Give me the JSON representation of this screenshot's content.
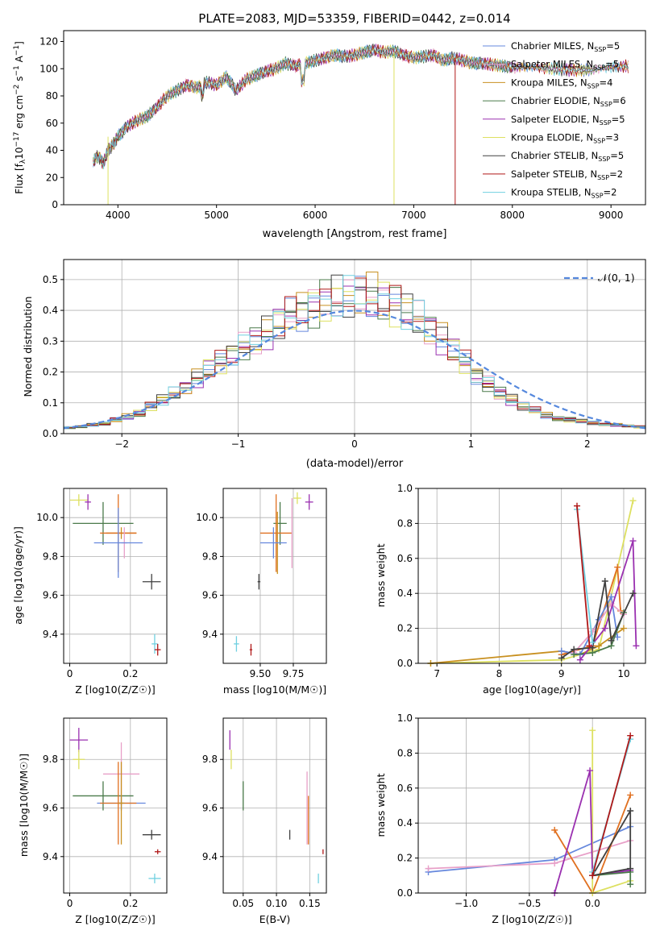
{
  "figure": {
    "title": "PLATE=2083, MJD=53359, FIBERID=0442, z=0.014"
  },
  "colors": {
    "series": [
      "#6688dd",
      "#e8a0c8",
      "#c89020",
      "#4a7a4a",
      "#9a30b0",
      "#dde060",
      "#404040",
      "#b01818",
      "#70d0e0"
    ],
    "extra_orange": "#e07020",
    "grid": "#b0b0b0",
    "gauss": "#5588dd"
  },
  "icons": [],
  "chart_data": [
    {
      "type": "line",
      "title": "PLATE=2083, MJD=53359, FIBERID=0442, z=0.014",
      "xlabel": "wavelength [Angstrom, rest frame]",
      "ylabel": "Flux [f_λ 10^-17 erg cm^-2 s^-1 A^-1]",
      "xlim": [
        3450,
        9350
      ],
      "ylim": [
        0,
        128
      ],
      "xticks": [
        4000,
        5000,
        6000,
        7000,
        8000,
        9000
      ],
      "yticks": [
        0,
        20,
        40,
        60,
        80,
        100,
        120
      ],
      "legend_position": "top-right",
      "series": [
        {
          "name": "Chabrier MILES, N_SSP=5"
        },
        {
          "name": "Salpeter MILES, N_SSP=5"
        },
        {
          "name": "Kroupa MILES, N_SSP=4"
        },
        {
          "name": "Chabrier ELODIE, N_SSP=6"
        },
        {
          "name": "Salpeter ELODIE, N_SSP=5"
        },
        {
          "name": "Kroupa ELODIE, N_SSP=3"
        },
        {
          "name": "Chabrier STELIB, N_SSP=5"
        },
        {
          "name": "Salpeter STELIB, N_SSP=2"
        },
        {
          "name": "Kroupa STELIB, N_SSP=2"
        }
      ],
      "spectrum": {
        "x": [
          3750,
          3800,
          3850,
          3900,
          3950,
          4000,
          4100,
          4200,
          4300,
          4400,
          4500,
          4600,
          4700,
          4800,
          4900,
          5000,
          5100,
          5200,
          5300,
          5400,
          5500,
          5600,
          5700,
          5800,
          5900,
          6000,
          6100,
          6200,
          6300,
          6400,
          6500,
          6600,
          6700,
          6800,
          6900,
          7000,
          7100,
          7200,
          7300,
          7400,
          7500,
          7600,
          7700,
          7800,
          7900,
          8000,
          8200,
          8400,
          8600,
          8800,
          9000,
          9200
        ],
        "y": [
          32,
          36,
          30,
          40,
          44,
          50,
          58,
          62,
          65,
          72,
          80,
          84,
          88,
          86,
          90,
          88,
          94,
          84,
          92,
          95,
          98,
          100,
          104,
          102,
          104,
          106,
          108,
          110,
          109,
          110,
          112,
          114,
          112,
          113,
          110,
          108,
          109,
          110,
          106,
          108,
          106,
          104,
          104,
          103,
          102,
          101,
          101,
          100,
          99,
          99,
          101,
          102
        ]
      }
    },
    {
      "type": "bar",
      "subtype": "step-histogram",
      "xlabel": "(data-model)/error",
      "ylabel": "Normed distribution",
      "xlim": [
        -2.5,
        2.5
      ],
      "ylim": [
        0,
        0.565
      ],
      "xticks": [
        -2,
        -1,
        0,
        1,
        2
      ],
      "yticks": [
        0.0,
        0.1,
        0.2,
        0.3,
        0.4,
        0.5
      ],
      "legend_position": "top-right",
      "legend": [
        "𝒩(0, 1)"
      ],
      "bin_edges": [
        -2.5,
        -2.4,
        -2.3,
        -2.2,
        -2.1,
        -2.0,
        -1.9,
        -1.8,
        -1.7,
        -1.6,
        -1.5,
        -1.4,
        -1.3,
        -1.2,
        -1.1,
        -1.0,
        -0.9,
        -0.8,
        -0.7,
        -0.6,
        -0.5,
        -0.4,
        -0.3,
        -0.2,
        -0.1,
        0.0,
        0.1,
        0.2,
        0.3,
        0.4,
        0.5,
        0.6,
        0.7,
        0.8,
        0.9,
        1.0,
        1.1,
        1.2,
        1.3,
        1.4,
        1.5,
        1.6,
        1.7,
        1.8,
        1.9,
        2.0,
        2.1,
        2.2,
        2.3,
        2.4,
        2.5
      ],
      "base_values": [
        0.02,
        0.022,
        0.028,
        0.033,
        0.045,
        0.055,
        0.066,
        0.09,
        0.11,
        0.13,
        0.15,
        0.18,
        0.21,
        0.23,
        0.26,
        0.28,
        0.3,
        0.33,
        0.36,
        0.38,
        0.4,
        0.41,
        0.43,
        0.44,
        0.445,
        0.45,
        0.445,
        0.43,
        0.42,
        0.4,
        0.37,
        0.34,
        0.31,
        0.27,
        0.23,
        0.19,
        0.16,
        0.13,
        0.11,
        0.09,
        0.075,
        0.06,
        0.05,
        0.045,
        0.04,
        0.035,
        0.03,
        0.028,
        0.025,
        0.022
      ]
    },
    {
      "type": "scatter",
      "subtype": "errorbar",
      "xlabel": "Z [log10(Z/Z☉)]",
      "ylabel": "age  [log10(age/yr)]",
      "xlim": [
        -0.02,
        0.32
      ],
      "ylim": [
        9.25,
        10.15
      ],
      "xticks": [
        0.0,
        0.2
      ],
      "yticks": [
        9.4,
        9.6,
        9.8,
        10.0
      ],
      "points": [
        {
          "x": 0.03,
          "y": 10.09,
          "xerr": 0.03,
          "yerr": 0.03,
          "color": 5
        },
        {
          "x": 0.06,
          "y": 10.08,
          "xerr": 0.01,
          "yerr": 0.04,
          "color": 4
        },
        {
          "x": 0.11,
          "y": 9.97,
          "xerr": 0.1,
          "yerr": 0.11,
          "color": 3
        },
        {
          "x": 0.17,
          "y": 9.92,
          "xerr": 0.05,
          "yerr": 0.03,
          "color": 2
        },
        {
          "x": 0.16,
          "y": 9.92,
          "xerr": 0.06,
          "yerr": 0.2,
          "color": 9
        },
        {
          "x": 0.18,
          "y": 9.87,
          "xerr": 0.01,
          "yerr": 0.08,
          "color": 1
        },
        {
          "x": 0.16,
          "y": 9.87,
          "xerr": 0.08,
          "yerr": 0.18,
          "color": 0
        },
        {
          "x": 0.27,
          "y": 9.67,
          "xerr": 0.03,
          "yerr": 0.04,
          "color": 6
        },
        {
          "x": 0.28,
          "y": 9.35,
          "xerr": 0.01,
          "yerr": 0.05,
          "color": 8
        },
        {
          "x": 0.29,
          "y": 9.32,
          "xerr": 0.01,
          "yerr": 0.03,
          "color": 7
        }
      ]
    },
    {
      "type": "scatter",
      "subtype": "errorbar",
      "xlabel": "mass [log10(M/M☉)]",
      "ylabel": "",
      "xlim": [
        9.22,
        10.0
      ],
      "ylim": [
        9.25,
        10.15
      ],
      "xticks": [
        9.5,
        9.75
      ],
      "tick_labels": [
        "9.50",
        "9.75"
      ],
      "yticks": [
        9.4,
        9.6,
        9.8,
        10.0
      ],
      "points": [
        {
          "x": 9.78,
          "y": 10.1,
          "xerr": 0.03,
          "yerr": 0.03,
          "color": 5
        },
        {
          "x": 9.87,
          "y": 10.08,
          "xerr": 0.03,
          "yerr": 0.04,
          "color": 4
        },
        {
          "x": 9.65,
          "y": 9.97,
          "xerr": 0.05,
          "yerr": 0.11,
          "color": 3
        },
        {
          "x": 9.62,
          "y": 9.92,
          "xerr": 0.12,
          "yerr": 0.2,
          "color": 9
        },
        {
          "x": 9.74,
          "y": 9.92,
          "xerr": 0.001,
          "yerr": 0.18,
          "color": 1
        },
        {
          "x": 9.63,
          "y": 9.87,
          "xerr": 0.001,
          "yerr": 0.16,
          "color": 2
        },
        {
          "x": 9.6,
          "y": 9.87,
          "xerr": 0.1,
          "yerr": 0.08,
          "color": 0
        },
        {
          "x": 9.49,
          "y": 9.67,
          "xerr": 0.01,
          "yerr": 0.04,
          "color": 6
        },
        {
          "x": 9.32,
          "y": 9.35,
          "xerr": 0.02,
          "yerr": 0.04,
          "color": 8
        },
        {
          "x": 9.43,
          "y": 9.32,
          "xerr": 0.01,
          "yerr": 0.03,
          "color": 7
        }
      ]
    },
    {
      "type": "line",
      "xlabel": "age  [log10(age/yr)]",
      "ylabel": "mass weight",
      "xlim": [
        6.7,
        10.35
      ],
      "ylim": [
        0.0,
        1.0
      ],
      "xticks": [
        7,
        8,
        9,
        10
      ],
      "yticks": [
        0.0,
        0.2,
        0.4,
        0.6,
        0.8,
        1.0
      ],
      "series": [
        {
          "color": 5,
          "x": [
            6.9,
            9.0,
            9.6,
            10.15
          ],
          "y": [
            0.0,
            0.02,
            0.08,
            0.93
          ]
        },
        {
          "color": 2,
          "x": [
            6.9,
            9.0,
            9.3,
            9.6,
            10.0
          ],
          "y": [
            0.0,
            0.07,
            0.05,
            0.1,
            0.2
          ]
        },
        {
          "color": 9,
          "x": [
            9.0,
            9.5,
            9.9,
            9.95
          ],
          "y": [
            0.05,
            0.1,
            0.55,
            0.3
          ]
        },
        {
          "color": 0,
          "x": [
            9.0,
            9.3,
            9.6,
            9.8,
            9.9
          ],
          "y": [
            0.07,
            0.05,
            0.25,
            0.38,
            0.15
          ]
        },
        {
          "color": 1,
          "x": [
            9.2,
            9.5,
            9.8,
            10.0
          ],
          "y": [
            0.06,
            0.18,
            0.34,
            0.28
          ]
        },
        {
          "color": 3,
          "x": [
            9.2,
            9.5,
            9.8,
            10.0
          ],
          "y": [
            0.05,
            0.06,
            0.1,
            0.29
          ]
        },
        {
          "color": 4,
          "x": [
            9.3,
            9.7,
            10.15,
            10.2
          ],
          "y": [
            0.02,
            0.2,
            0.7,
            0.1
          ]
        },
        {
          "color": 6,
          "x": [
            9.0,
            9.2,
            9.5,
            9.7,
            9.8,
            10.15
          ],
          "y": [
            0.03,
            0.08,
            0.09,
            0.47,
            0.13,
            0.4
          ]
        },
        {
          "color": 8,
          "x": [
            9.25,
            9.5
          ],
          "y": [
            0.88,
            0.12
          ]
        },
        {
          "color": 7,
          "x": [
            9.25,
            9.45
          ],
          "y": [
            0.9,
            0.1
          ]
        }
      ]
    },
    {
      "type": "scatter",
      "subtype": "errorbar",
      "xlabel": "Z [log10(Z/Z☉)]",
      "ylabel": "mass [log10(M/M☉)]",
      "xlim": [
        -0.02,
        0.32
      ],
      "ylim": [
        9.25,
        9.97
      ],
      "xticks": [
        0.0,
        0.2
      ],
      "yticks": [
        9.4,
        9.6,
        9.8
      ],
      "points": [
        {
          "x": 0.03,
          "y": 9.88,
          "xerr": 0.03,
          "yerr": 0.05,
          "color": 4
        },
        {
          "x": 0.03,
          "y": 9.8,
          "xerr": 0.02,
          "yerr": 0.04,
          "color": 5
        },
        {
          "x": 0.11,
          "y": 9.65,
          "xerr": 0.1,
          "yerr": 0.06,
          "color": 3
        },
        {
          "x": 0.17,
          "y": 9.74,
          "xerr": 0.06,
          "yerr": 0.13,
          "color": 1
        },
        {
          "x": 0.17,
          "y": 9.62,
          "xerr": 0.08,
          "yerr": 0.03,
          "color": 0
        },
        {
          "x": 0.16,
          "y": 9.62,
          "xerr": 0.06,
          "yerr": 0.17,
          "color": 9
        },
        {
          "x": 0.17,
          "y": 9.62,
          "xerr": 0.01,
          "yerr": 0.17,
          "color": 2
        },
        {
          "x": 0.27,
          "y": 9.49,
          "xerr": 0.03,
          "yerr": 0.02,
          "color": 6
        },
        {
          "x": 0.29,
          "y": 9.42,
          "xerr": 0.01,
          "yerr": 0.01,
          "color": 7
        },
        {
          "x": 0.28,
          "y": 9.31,
          "xerr": 0.02,
          "yerr": 0.02,
          "color": 8
        }
      ]
    },
    {
      "type": "scatter",
      "subtype": "errorbar",
      "xlabel": "E(B-V)",
      "ylabel": "",
      "xlim": [
        0.02,
        0.175
      ],
      "ylim": [
        9.25,
        9.97
      ],
      "xticks": [
        0.05,
        0.1,
        0.15
      ],
      "tick_labels": [
        "0.05",
        "0.10",
        "0.15"
      ],
      "yticks": [
        9.4,
        9.6,
        9.8
      ],
      "points": [
        {
          "x": 0.03,
          "y": 9.88,
          "xerr": 0,
          "yerr": 0.04,
          "color": 4
        },
        {
          "x": 0.032,
          "y": 9.8,
          "xerr": 0,
          "yerr": 0.04,
          "color": 5
        },
        {
          "x": 0.05,
          "y": 9.65,
          "xerr": 0,
          "yerr": 0.06,
          "color": 3
        },
        {
          "x": 0.146,
          "y": 9.6,
          "xerr": 0,
          "yerr": 0.15,
          "color": 1
        },
        {
          "x": 0.148,
          "y": 9.55,
          "xerr": 0,
          "yerr": 0.1,
          "color": 9
        },
        {
          "x": 0.12,
          "y": 9.49,
          "xerr": 0,
          "yerr": 0.02,
          "color": 6
        },
        {
          "x": 0.17,
          "y": 9.42,
          "xerr": 0,
          "yerr": 0.01,
          "color": 7
        },
        {
          "x": 0.163,
          "y": 9.31,
          "xerr": 0,
          "yerr": 0.02,
          "color": 8
        }
      ]
    },
    {
      "type": "line",
      "xlabel": "Z [log10(Z/Z☉)]",
      "ylabel": "mass weight",
      "xlim": [
        -1.38,
        0.42
      ],
      "ylim": [
        0.0,
        1.0
      ],
      "xticks": [
        -1.0,
        -0.5,
        0.0
      ],
      "tick_labels": [
        "−1.0",
        "−0.5",
        "0.0"
      ],
      "yticks": [
        0.0,
        0.2,
        0.4,
        0.6,
        0.8,
        1.0
      ],
      "series": [
        {
          "color": 0,
          "x": [
            -1.3,
            -0.3,
            0.3
          ],
          "y": [
            0.12,
            0.19,
            0.38
          ]
        },
        {
          "color": 1,
          "x": [
            -1.3,
            -0.3,
            0.3
          ],
          "y": [
            0.14,
            0.17,
            0.3
          ]
        },
        {
          "color": 9,
          "x": [
            -0.3,
            0.0,
            0.3
          ],
          "y": [
            0.36,
            0.0,
            0.56
          ]
        },
        {
          "color": 5,
          "x": [
            0.0,
            0.0,
            0.3
          ],
          "y": [
            0.93,
            0.0,
            0.07
          ]
        },
        {
          "color": 4,
          "x": [
            -0.3,
            -0.02,
            0.0,
            0.3
          ],
          "y": [
            0.0,
            0.7,
            0.1,
            0.13
          ]
        },
        {
          "color": 3,
          "x": [
            0.0,
            0.3,
            0.3
          ],
          "y": [
            0.1,
            0.12,
            0.05
          ]
        },
        {
          "color": 6,
          "x": [
            0.0,
            0.3,
            0.3,
            0.0
          ],
          "y": [
            0.1,
            0.47,
            0.14,
            0.1
          ]
        },
        {
          "color": 8,
          "x": [
            0.0,
            0.3
          ],
          "y": [
            0.12,
            0.88
          ]
        },
        {
          "color": 7,
          "x": [
            0.0,
            0.3
          ],
          "y": [
            0.1,
            0.9
          ]
        }
      ]
    }
  ]
}
